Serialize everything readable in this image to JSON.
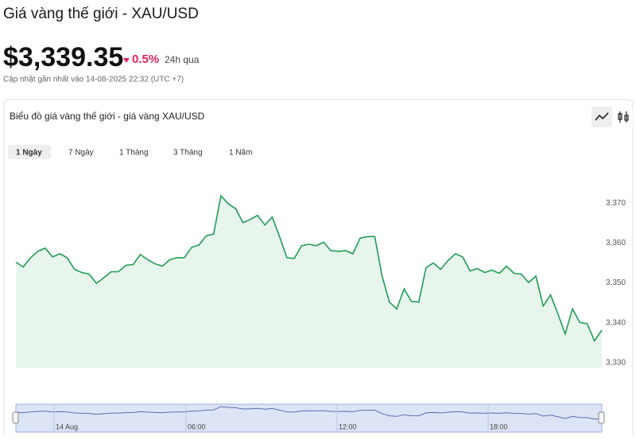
{
  "header": {
    "title": "Giá vàng thế giới - XAU/USD",
    "price": "$3,339.35",
    "change": "0.5%",
    "period": "24h qua",
    "updated": "Cập nhật gần nhất vào 14-08-2025 22:32 (UTC +7)"
  },
  "tabs": [
    "1 Ngày",
    "7 Ngày",
    "1 Tháng",
    "3 Tháng",
    "1 Năm"
  ],
  "chart_data": {
    "type": "line",
    "title": "Biểu đồ giá vàng thế giới - giá vàng XAU/USD",
    "color": "#1f9d55",
    "grid": false,
    "values": [
      3355.2,
      3354.0,
      3356.3,
      3357.9,
      3358.7,
      3356.5,
      3357.3,
      3356.3,
      3353.4,
      3352.6,
      3352.2,
      3349.9,
      3351.3,
      3352.8,
      3352.8,
      3354.4,
      3354.6,
      3357.1,
      3355.8,
      3354.8,
      3354.2,
      3355.8,
      3356.3,
      3356.3,
      3358.9,
      3359.5,
      3361.8,
      3362.2,
      3371.8,
      3369.8,
      3368.6,
      3365.1,
      3365.9,
      3366.9,
      3364.5,
      3366.5,
      3361.6,
      3356.3,
      3356.1,
      3359.3,
      3359.7,
      3359.3,
      3360.2,
      3358.1,
      3357.9,
      3358.1,
      3357.3,
      3361.2,
      3361.6,
      3361.6,
      3351.7,
      3345.2,
      3343.5,
      3348.5,
      3345.4,
      3345.2,
      3353.8,
      3355.0,
      3353.4,
      3355.6,
      3357.3,
      3356.5,
      3353.0,
      3353.6,
      3352.6,
      3353.2,
      3352.4,
      3354.2,
      3352.4,
      3352.2,
      3350.1,
      3351.7,
      3344.2,
      3347.0,
      3342.3,
      3337.2,
      3343.5,
      3340.1,
      3339.8,
      3335.5,
      3338.2
    ],
    "ylim": [
      3328,
      3379
    ],
    "yticks": [
      {
        "value": 3330,
        "label": "3,330"
      },
      {
        "value": 3340,
        "label": "3,340"
      },
      {
        "value": 3350,
        "label": "3,350"
      },
      {
        "value": 3360,
        "label": "3,360"
      },
      {
        "value": 3370,
        "label": "3,370"
      }
    ]
  },
  "navigator_labels": [
    "14 Aug",
    "06:00",
    "12:00",
    "18:00"
  ]
}
